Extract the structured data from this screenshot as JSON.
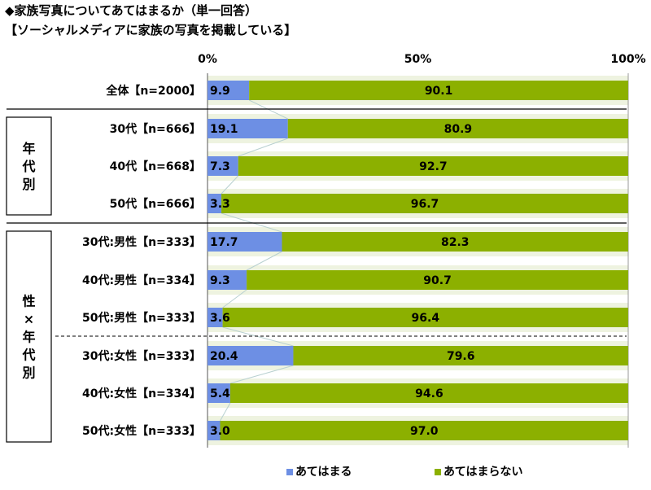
{
  "title": "◆家族写真についてあてはまるか（単一回答）",
  "subtitle": "【ソーシャルメディアに家族の写真を掲載している】",
  "colors": {
    "series_a": "#6d8fe4",
    "series_b": "#8cb000",
    "band": "#eef3e0",
    "connector": "#b8d0d0"
  },
  "chart_data": {
    "type": "bar",
    "orientation": "horizontal",
    "stacked": "percent",
    "xlim": [
      0,
      100
    ],
    "ticks": [
      "0%",
      "50%",
      "100%"
    ],
    "categories": [
      "全体【n=2000】",
      "30代【n=666】",
      "40代【n=668】",
      "50代【n=666】",
      "30代:男性【n=333】",
      "40代:男性【n=334】",
      "50代:男性【n=333】",
      "30代:女性【n=333】",
      "40代:女性【n=334】",
      "50代:女性【n=333】"
    ],
    "series": [
      {
        "name": "あてはまる",
        "values": [
          9.9,
          19.1,
          7.3,
          3.3,
          17.7,
          9.3,
          3.6,
          20.4,
          5.4,
          3.0
        ],
        "labels": [
          "9.9",
          "19.1",
          "7.3",
          "3.3",
          "17.7",
          "9.3",
          "3.6",
          "20.4",
          "5.4",
          "3.0"
        ]
      },
      {
        "name": "あてはまらない",
        "values": [
          90.1,
          80.9,
          92.7,
          96.7,
          82.3,
          90.7,
          96.4,
          79.6,
          94.6,
          97.0
        ],
        "labels": [
          "90.1",
          "80.9",
          "92.7",
          "96.7",
          "82.3",
          "90.7",
          "96.4",
          "79.6",
          "94.6",
          "97.0"
        ]
      }
    ],
    "groups": [
      {
        "label": "年代別",
        "rows": [
          1,
          3
        ]
      },
      {
        "label": "性×年代別",
        "rows": [
          4,
          9
        ]
      }
    ],
    "legend_position": "bottom"
  }
}
